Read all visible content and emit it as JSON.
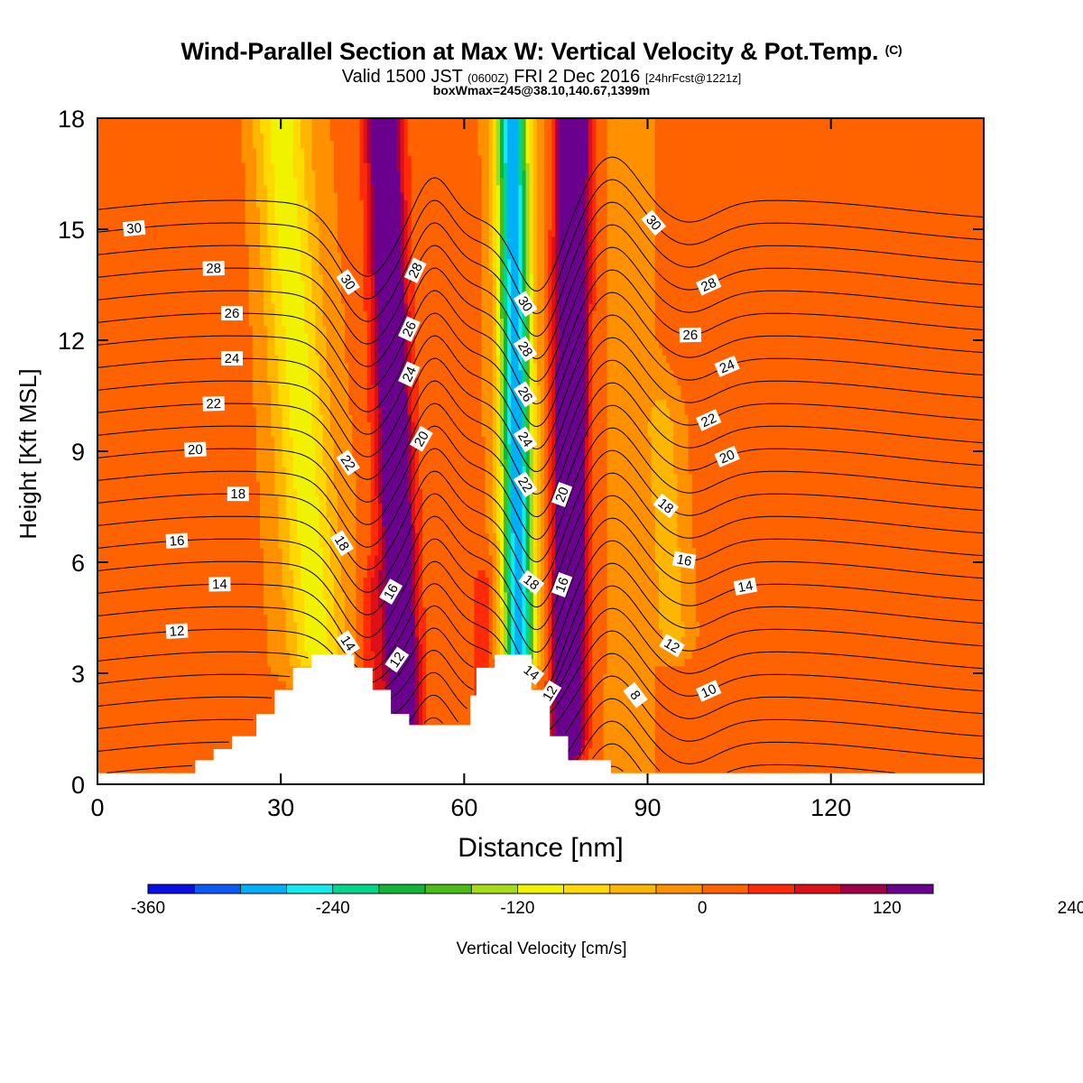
{
  "header": {
    "title": "Wind-Parallel Section at Max W: Vertical Velocity & Pot.Temp.",
    "title_mark": "(C)",
    "valid_prefix": "Valid 1500 JST",
    "valid_utc": "(0600Z)",
    "valid_date": "FRI 2 Dec 2016",
    "valid_fcst": "[24hrFcst@1221z]",
    "box_info": "boxWmax=245@38.10,140.67,1399m"
  },
  "chart_data": {
    "type": "heatmap",
    "xlabel": "Distance [nm]",
    "ylabel": "Height [Kft MSL]",
    "xlim": [
      0,
      145
    ],
    "ylim": [
      0,
      18
    ],
    "x_ticks": [
      0,
      30,
      60,
      90,
      120
    ],
    "y_ticks": [
      0,
      3,
      6,
      9,
      12,
      15,
      18
    ],
    "grid": false,
    "colorbar": {
      "label": "Vertical Velocity [cm/s]",
      "placement": "bottom",
      "range": [
        -360,
        300
      ],
      "step": 30,
      "tick_values": [
        -360,
        -240,
        -120,
        0,
        120,
        240
      ],
      "colors": [
        "#0a0ee6",
        "#0b5af4",
        "#00b0f6",
        "#12ecec",
        "#00d68a",
        "#12b53a",
        "#4cbb18",
        "#a6db18",
        "#f0f200",
        "#ffd900",
        "#ffb600",
        "#ff9000",
        "#ff6300",
        "#ff2a0a",
        "#dd1018",
        "#a00048",
        "#6c008e"
      ]
    },
    "terrain_profile": [
      [
        0,
        0.3
      ],
      [
        16,
        0.3
      ],
      [
        16,
        0.65
      ],
      [
        19,
        0.65
      ],
      [
        19,
        0.95
      ],
      [
        22,
        0.95
      ],
      [
        22,
        1.3
      ],
      [
        26,
        1.3
      ],
      [
        26,
        1.9
      ],
      [
        29,
        1.9
      ],
      [
        29,
        2.55
      ],
      [
        32,
        2.55
      ],
      [
        32,
        3.15
      ],
      [
        35,
        3.15
      ],
      [
        35,
        3.5
      ],
      [
        42,
        3.5
      ],
      [
        42,
        3.15
      ],
      [
        45,
        3.15
      ],
      [
        45,
        2.55
      ],
      [
        48,
        2.55
      ],
      [
        48,
        1.9
      ],
      [
        51,
        1.9
      ],
      [
        51,
        1.6
      ],
      [
        61,
        1.6
      ],
      [
        61,
        2.4
      ],
      [
        62,
        2.4
      ],
      [
        62,
        3.15
      ],
      [
        65,
        3.15
      ],
      [
        65,
        3.5
      ],
      [
        71,
        3.5
      ],
      [
        71,
        2.55
      ],
      [
        74,
        2.55
      ],
      [
        74,
        1.3
      ],
      [
        77,
        1.3
      ],
      [
        77,
        0.65
      ],
      [
        84,
        0.65
      ],
      [
        84,
        0.3
      ],
      [
        145,
        0.3
      ]
    ],
    "w_field_cm_s": [
      {
        "x": 36,
        "z_bottom": 3.5,
        "z_top": 18,
        "tilt_nm_per_kft": -0.42,
        "width_nm": 4.5,
        "peak": -110
      },
      {
        "x": 50,
        "z_bottom": 2.0,
        "z_top": 18,
        "tilt_nm_per_kft": -0.2,
        "width_nm": 2.8,
        "peak": 210
      },
      {
        "x": 69,
        "z_bottom": 3.6,
        "z_top": 18,
        "tilt_nm_per_kft": -0.08,
        "width_nm": 2.6,
        "peak": -300
      },
      {
        "x": 77,
        "z_bottom": 1.2,
        "z_top": 18,
        "tilt_nm_per_kft": 0.05,
        "width_nm": 2.4,
        "peak": 290
      },
      {
        "x": 94,
        "z_bottom": 4.2,
        "z_top": 9.5,
        "tilt_nm_per_kft": -0.3,
        "width_nm": 2.6,
        "peak": -55
      },
      {
        "x": 130,
        "z_bottom": 0.5,
        "z_top": 9.5,
        "tilt_nm_per_kft": 0,
        "width_nm": 5,
        "peak": 22
      },
      {
        "x": 16,
        "z_bottom": 4,
        "z_top": 18,
        "tilt_nm_per_kft": 0.2,
        "width_nm": 6,
        "peak": 20
      },
      {
        "x": 45,
        "z_bottom": 2.0,
        "z_top": 5,
        "tilt_nm_per_kft": 0,
        "width_nm": 2.0,
        "peak": 45
      },
      {
        "x": 63,
        "z_bottom": 2.4,
        "z_top": 5,
        "tilt_nm_per_kft": 0,
        "width_nm": 2.0,
        "peak": 45
      },
      {
        "x": 87,
        "z_bottom": 0.5,
        "z_top": 18,
        "tilt_nm_per_kft": 0,
        "width_nm": 4,
        "peak": -12
      }
    ],
    "theta_contours_C": [
      {
        "value": 8,
        "label": "8",
        "label_x": 88
      },
      {
        "value": 10,
        "label": "10",
        "label_x": 40
      },
      {
        "value": 10,
        "label": "10",
        "label_x": 68
      },
      {
        "value": 10,
        "label": "10",
        "label_x": 100
      },
      {
        "value": 12,
        "label": "12",
        "label_x": 13
      },
      {
        "value": 12,
        "label": "12",
        "label_x": 49
      },
      {
        "value": 12,
        "label": "12",
        "label_x": 74
      },
      {
        "value": 12,
        "label": "12",
        "label_x": 94
      },
      {
        "value": 14,
        "label": "14",
        "label_x": 20
      },
      {
        "value": 14,
        "label": "14",
        "label_x": 41
      },
      {
        "value": 14,
        "label": "14",
        "label_x": 71
      },
      {
        "value": 14,
        "label": "14",
        "label_x": 106
      },
      {
        "value": 16,
        "label": "16",
        "label_x": 13
      },
      {
        "value": 16,
        "label": "16",
        "label_x": 48
      },
      {
        "value": 16,
        "label": "16",
        "label_x": 76
      },
      {
        "value": 16,
        "label": "16",
        "label_x": 96
      },
      {
        "value": 18,
        "label": "18",
        "label_x": 23
      },
      {
        "value": 18,
        "label": "18",
        "label_x": 40
      },
      {
        "value": 18,
        "label": "18",
        "label_x": 71
      },
      {
        "value": 18,
        "label": "18",
        "label_x": 93
      },
      {
        "value": 20,
        "label": "20",
        "label_x": 16
      },
      {
        "value": 20,
        "label": "20",
        "label_x": 53
      },
      {
        "value": 20,
        "label": "20",
        "label_x": 76
      },
      {
        "value": 20,
        "label": "20",
        "label_x": 103
      },
      {
        "value": 22,
        "label": "22",
        "label_x": 19
      },
      {
        "value": 22,
        "label": "22",
        "label_x": 41
      },
      {
        "value": 22,
        "label": "22",
        "label_x": 70
      },
      {
        "value": 22,
        "label": "22",
        "label_x": 100
      },
      {
        "value": 24,
        "label": "24",
        "label_x": 22
      },
      {
        "value": 24,
        "label": "24",
        "label_x": 51
      },
      {
        "value": 24,
        "label": "24",
        "label_x": 70
      },
      {
        "value": 24,
        "label": "24",
        "label_x": 103
      },
      {
        "value": 26,
        "label": "26",
        "label_x": 22
      },
      {
        "value": 26,
        "label": "26",
        "label_x": 51
      },
      {
        "value": 26,
        "label": "26",
        "label_x": 70
      },
      {
        "value": 26,
        "label": "26",
        "label_x": 97
      },
      {
        "value": 28,
        "label": "28",
        "label_x": 19
      },
      {
        "value": 28,
        "label": "28",
        "label_x": 52
      },
      {
        "value": 28,
        "label": "28",
        "label_x": 70
      },
      {
        "value": 28,
        "label": "28",
        "label_x": 100
      },
      {
        "value": 30,
        "label": "30",
        "label_x": 6
      },
      {
        "value": 30,
        "label": "30",
        "label_x": 41
      },
      {
        "value": 30,
        "label": "30",
        "label_x": 70
      },
      {
        "value": 30,
        "label": "30",
        "label_x": 91
      }
    ]
  }
}
